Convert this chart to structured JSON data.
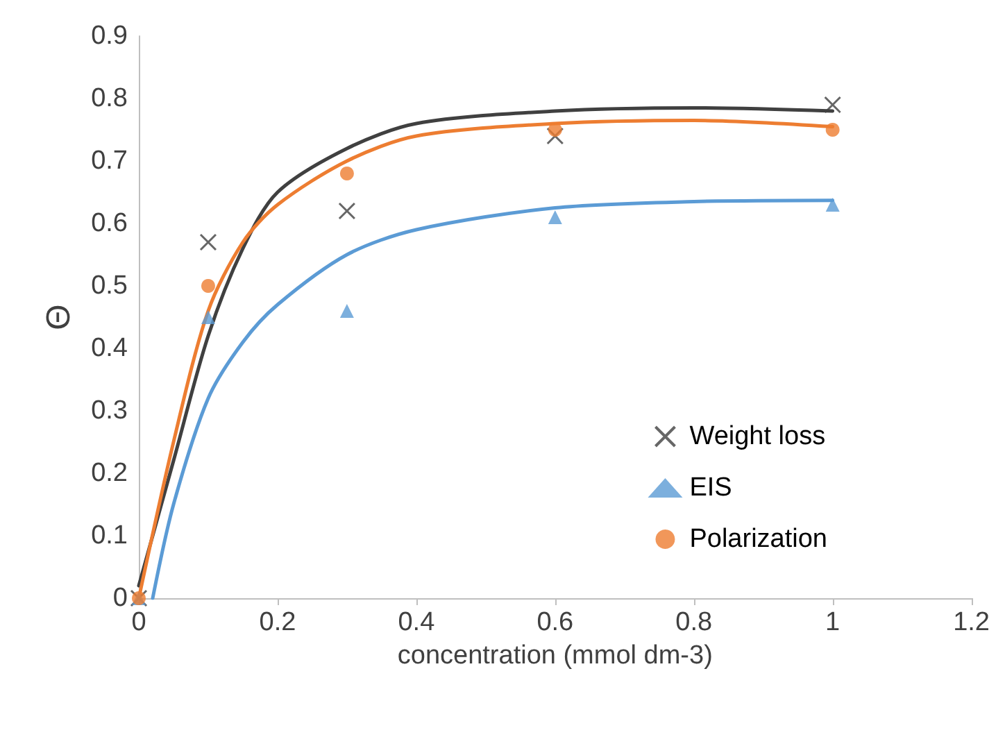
{
  "chart_data": {
    "type": "scatter",
    "xlabel": "concentration (mmol dm-3)",
    "ylabel": "Θ",
    "xlim": [
      0,
      1.2
    ],
    "xticks": [
      0,
      0.2,
      0.4,
      0.6,
      0.8,
      1,
      1.2
    ],
    "ylim": [
      0,
      0.9
    ],
    "yticks": [
      0,
      0.1,
      0.2,
      0.3,
      0.4,
      0.5,
      0.6,
      0.7,
      0.8,
      0.9
    ],
    "grid": false,
    "legend": "bottom right",
    "series": [
      {
        "name": "Weight loss",
        "color": "#404040",
        "marker": "cross",
        "x": [
          0,
          0.1,
          0.3,
          0.6,
          1
        ],
        "values": [
          0,
          0.57,
          0.62,
          0.74,
          0.79
        ]
      },
      {
        "name": "EIS",
        "color": "#5b9bd5",
        "marker": "triangle",
        "x": [
          0,
          0.1,
          0.3,
          0.6,
          1
        ],
        "values": [
          0,
          0.45,
          0.46,
          0.61,
          0.63
        ]
      },
      {
        "name": "Polarization",
        "color": "#ed7d31",
        "marker": "circle",
        "x": [
          0,
          0.1,
          0.3,
          0.6,
          1
        ],
        "values": [
          0,
          0.5,
          0.68,
          0.75,
          0.75
        ]
      },
      {
        "type": "line",
        "color": "#404040",
        "marker": "none",
        "x": [
          0,
          0.05,
          0.1,
          0.15,
          0.2,
          0.3,
          0.4,
          0.6,
          0.8,
          1
        ],
        "values": [
          0.02,
          0.22,
          0.42,
          0.56,
          0.65,
          0.72,
          0.76,
          0.78,
          0.785,
          0.78
        ]
      },
      {
        "type": "line",
        "color": "#5b9bd5",
        "marker": "none",
        "x": [
          0.02,
          0.05,
          0.1,
          0.15,
          0.2,
          0.3,
          0.4,
          0.6,
          0.8,
          1
        ],
        "values": [
          0,
          0.15,
          0.32,
          0.41,
          0.47,
          0.55,
          0.59,
          0.625,
          0.635,
          0.637
        ]
      },
      {
        "type": "line",
        "color": "#ed7d31",
        "marker": "none",
        "x": [
          0,
          0.05,
          0.1,
          0.15,
          0.2,
          0.3,
          0.4,
          0.6,
          0.8,
          1
        ],
        "values": [
          0,
          0.25,
          0.46,
          0.57,
          0.63,
          0.7,
          0.74,
          0.76,
          0.765,
          0.755
        ]
      }
    ]
  }
}
